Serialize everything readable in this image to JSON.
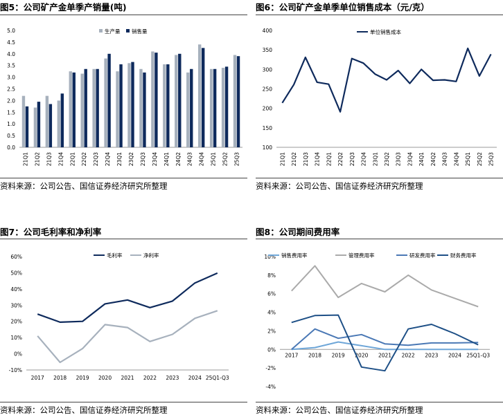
{
  "source_note": "资料来源：公司公告、国信证券经济研究所整理",
  "colors": {
    "navy": "#0e2a5c",
    "gray": "#a7b1bd",
    "midblue": "#4a78b5",
    "lightblue": "#6ea6d8",
    "lightgray": "#aaaaaa",
    "darkblue": "#1d4f86"
  },
  "chart_data": [
    {
      "id": "fig5",
      "type": "bar",
      "title": "图5：公司矿产金单季产销量(吨)",
      "categories": [
        "21Q1",
        "21Q2",
        "21Q3",
        "21Q4",
        "22Q1",
        "22Q2",
        "22Q3",
        "22Q4",
        "23Q1",
        "23Q2",
        "23Q3",
        "23Q4",
        "24Q1",
        "24Q2",
        "24Q3",
        "24Q4",
        "25Q1",
        "25Q2",
        "25Q3"
      ],
      "series": [
        {
          "name": "生产量",
          "values": [
            2.2,
            1.7,
            2.2,
            2.0,
            3.25,
            3.15,
            3.35,
            3.8,
            3.25,
            3.6,
            3.35,
            4.1,
            3.55,
            3.95,
            3.2,
            4.4,
            3.35,
            3.4,
            3.95
          ]
        },
        {
          "name": "销售量",
          "values": [
            1.75,
            1.95,
            1.85,
            2.3,
            3.2,
            3.35,
            3.35,
            4.0,
            3.55,
            3.65,
            3.2,
            4.05,
            3.55,
            4.0,
            3.35,
            4.25,
            3.35,
            3.45,
            3.9
          ]
        }
      ],
      "yticks": [
        "5.0",
        "4.5",
        "4.0",
        "3.5",
        "3.0",
        "2.5",
        "2.0",
        "1.5",
        "1.0",
        "0.5",
        "0.0"
      ],
      "ylim": [
        0,
        5
      ],
      "legend": "top-left"
    },
    {
      "id": "fig6",
      "type": "line",
      "title": "图6：公司矿产金单季单位销售成本（元/克）",
      "categories": [
        "21Q1",
        "21Q2",
        "21Q3",
        "21Q4",
        "22Q1",
        "22Q2",
        "22Q3",
        "22Q4",
        "23Q1",
        "23Q2",
        "23Q3",
        "23Q4",
        "24Q1",
        "24Q2",
        "24Q3",
        "24Q4",
        "25Q1",
        "25Q2",
        "25Q3"
      ],
      "series": [
        {
          "name": "单位销售成本",
          "values": [
            214,
            261,
            331,
            267,
            262,
            191,
            328,
            316,
            288,
            273,
            297,
            264,
            300,
            272,
            273,
            269,
            354,
            283,
            339
          ]
        }
      ],
      "yticks": [
        "400",
        "350",
        "300",
        "250",
        "200",
        "150",
        "100"
      ],
      "ylim": [
        100,
        400
      ],
      "legend": "top-left"
    },
    {
      "id": "fig7",
      "type": "line",
      "title": "图7：公司毛利率和净利率",
      "categories": [
        "2017",
        "2018",
        "2019",
        "2020",
        "2021",
        "2022",
        "2023",
        "2024",
        "25Q1-Q3"
      ],
      "series": [
        {
          "name": "毛利率",
          "values": [
            24.5,
            19.5,
            20.0,
            30.8,
            33.2,
            28.5,
            32.5,
            43.7,
            49.8
          ]
        },
        {
          "name": "净利率",
          "values": [
            11.0,
            -5.3,
            3.2,
            18.0,
            16.2,
            7.6,
            12.0,
            21.9,
            26.6
          ]
        }
      ],
      "yticks": [
        "60%",
        "50%",
        "40%",
        "30%",
        "20%",
        "10%",
        "0%",
        "-10%"
      ],
      "ylim": [
        -10,
        60
      ],
      "legend": "top-center"
    },
    {
      "id": "fig8",
      "type": "line",
      "title": "图8：公司期间费用率",
      "categories": [
        "2017",
        "2018",
        "2019",
        "2020",
        "2021",
        "2022",
        "2023",
        "2024",
        "25Q1-Q3"
      ],
      "series": [
        {
          "name": "销售费用率",
          "values": [
            0.0,
            0.2,
            0.8,
            0.4,
            0.0,
            0.0,
            0.0,
            0.0,
            0.0
          ]
        },
        {
          "name": "管理费用率",
          "values": [
            6.3,
            9.0,
            5.6,
            7.1,
            6.2,
            8.0,
            6.4,
            5.5,
            4.6
          ]
        },
        {
          "name": "研发费用率",
          "values": [
            0.0,
            2.2,
            1.2,
            1.6,
            0.6,
            0.45,
            0.7,
            0.7,
            0.75
          ]
        },
        {
          "name": "财务费用率",
          "values": [
            2.9,
            3.65,
            3.7,
            -1.9,
            -2.3,
            2.2,
            2.7,
            1.7,
            0.5
          ]
        }
      ],
      "yticks": [
        "10%",
        "8%",
        "6%",
        "4%",
        "2%",
        "0%",
        "-2%",
        "-4%"
      ],
      "ylim": [
        -4,
        10
      ],
      "legend": "top"
    }
  ]
}
